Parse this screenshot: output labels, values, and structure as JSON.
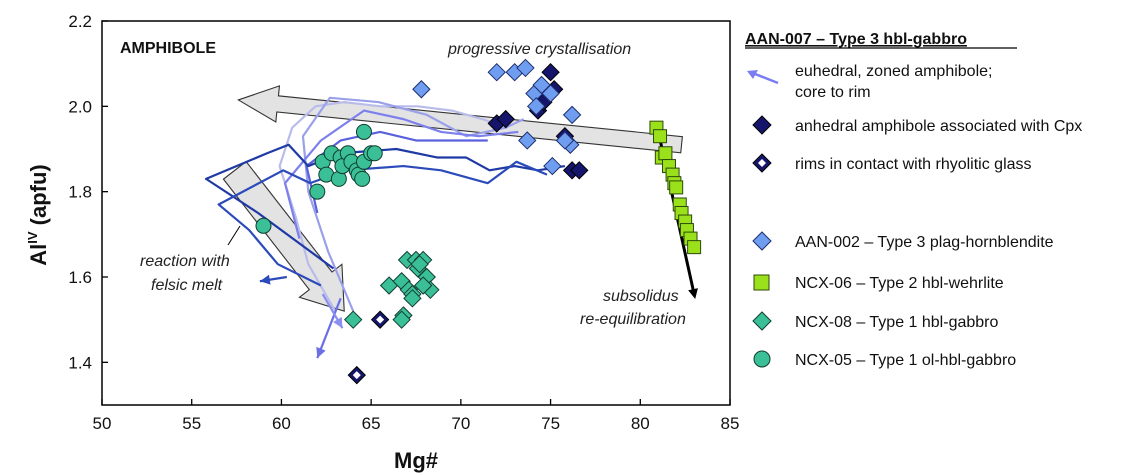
{
  "chart_data": {
    "type": "scatter",
    "xlabel": "Mg#",
    "ylabel_main": "Al",
    "ylabel_sup": "IV",
    "ylabel_rest": " (apfu)",
    "xlim": [
      50,
      85
    ],
    "ylim": [
      1.3,
      2.2
    ],
    "x_ticks": [
      "50",
      "55",
      "60",
      "65",
      "70",
      "75",
      "80",
      "85"
    ],
    "y_ticks": [
      "1.4",
      "1.6",
      "1.8",
      "2.0",
      "2.2"
    ],
    "panel_label": "AMPHIBOLE",
    "annotations": {
      "progressive": "progressive crystallisation",
      "reaction_line1": "reaction with",
      "reaction_line2": "felsic melt",
      "subsolidus_line1": "subsolidus",
      "subsolidus_line2": "re-equilibration"
    },
    "legend_title": "AAN-007 – Type 3 hbl-gabbro",
    "legend": [
      {
        "label_line1": "euhedral, zoned amphibole;",
        "label_line2": "core to rim",
        "symbol": "arrow",
        "color": "#7b7cf0"
      },
      {
        "label": "anhedral amphibole associated with Cpx",
        "symbol": "diamond",
        "color": "#15166b"
      },
      {
        "label": "rims in contact with rhyolitic glass",
        "symbol": "diamond-open",
        "color": "#15166b"
      },
      {
        "label": "AAN-002 – Type 3 plag-hornblendite",
        "symbol": "diamond",
        "color": "#6f9ef0"
      },
      {
        "label": "NCX-06 – Type 2 hbl-wehrlite",
        "symbol": "square",
        "color": "#9be11b"
      },
      {
        "label": "NCX-08 – Type 1 hbl-gabbro",
        "symbol": "diamond",
        "color": "#3bbf97"
      },
      {
        "label": "NCX-05 – Type 1 ol-hbl-gabbro",
        "symbol": "circle",
        "color": "#3bbf97"
      }
    ],
    "series": [
      {
        "key": "anhedral",
        "marker": "diamond",
        "color": "#15166b",
        "x": [
          72.0,
          72.5,
          74.3,
          74.6,
          75.0,
          75.2,
          75.8,
          76.2,
          76.6
        ],
        "y": [
          1.96,
          1.97,
          1.99,
          2.01,
          2.08,
          2.04,
          1.93,
          1.85,
          1.85
        ]
      },
      {
        "key": "rims",
        "marker": "diamond-open",
        "color": "#15166b",
        "x": [
          64.2,
          65.5
        ],
        "y": [
          1.37,
          1.5
        ]
      },
      {
        "key": "AAN-002",
        "marker": "diamond",
        "color": "#6f9ef0",
        "x": [
          67.8,
          72.0,
          73.0,
          73.6,
          74.1,
          74.5,
          74.2,
          73.7,
          75.1,
          76.1,
          76.2,
          75.0,
          75.8
        ],
        "y": [
          2.04,
          2.08,
          2.08,
          2.09,
          2.03,
          2.05,
          2.0,
          1.92,
          1.86,
          1.91,
          1.98,
          2.03,
          1.92
        ]
      },
      {
        "key": "NCX-06",
        "marker": "square",
        "color": "#9be11b",
        "x": [
          80.9,
          81.1,
          81.2,
          81.4,
          81.6,
          81.8,
          81.9,
          82.0,
          82.2,
          82.3,
          82.5,
          82.6,
          82.8,
          83.0
        ],
        "y": [
          1.95,
          1.93,
          1.88,
          1.89,
          1.86,
          1.84,
          1.82,
          1.81,
          1.77,
          1.75,
          1.73,
          1.71,
          1.69,
          1.67
        ]
      },
      {
        "key": "NCX-08",
        "marker": "diamond",
        "color": "#3bbf97",
        "x": [
          64.0,
          66.0,
          66.7,
          67.0,
          67.1,
          67.3,
          67.5,
          67.6,
          67.9,
          67.7,
          68.1,
          68.3,
          67.9,
          67.3,
          66.8,
          66.7
        ],
        "y": [
          1.5,
          1.58,
          1.59,
          1.64,
          1.57,
          1.56,
          1.64,
          1.62,
          1.64,
          1.63,
          1.6,
          1.57,
          1.58,
          1.55,
          1.51,
          1.5
        ]
      },
      {
        "key": "NCX-05",
        "marker": "circle",
        "color": "#3bbf97",
        "x": [
          59.0,
          62.0,
          62.3,
          62.5,
          62.8,
          63.2,
          63.3,
          63.4,
          63.7,
          63.9,
          64.2,
          64.3,
          64.5,
          64.6,
          65.0,
          65.2,
          64.6
        ],
        "y": [
          1.72,
          1.8,
          1.87,
          1.84,
          1.89,
          1.83,
          1.88,
          1.86,
          1.89,
          1.87,
          1.85,
          1.84,
          1.83,
          1.87,
          1.89,
          1.89,
          1.94
        ]
      }
    ],
    "paths": [
      {
        "color": "#b9bcea",
        "points": [
          [
            63.0,
            1.52
          ],
          [
            61.5,
            1.63
          ],
          [
            60.8,
            1.74
          ],
          [
            59.9,
            1.86
          ],
          [
            60.6,
            1.95
          ],
          [
            61.9,
            2.0
          ],
          [
            63.5,
            2.01
          ],
          [
            65.5,
            2.0
          ],
          [
            67.6,
            2.0
          ],
          [
            69.5,
            1.99
          ],
          [
            71.2,
            1.97
          ],
          [
            72.6,
            1.95
          ]
        ]
      },
      {
        "color": "#9aa0ea",
        "points": [
          [
            64.0,
            1.52
          ],
          [
            62.6,
            1.66
          ],
          [
            61.5,
            1.8
          ],
          [
            61.2,
            1.93
          ],
          [
            62.7,
            2.02
          ],
          [
            65.4,
            2.01
          ],
          [
            68.1,
            1.98
          ],
          [
            70.3,
            1.93
          ],
          [
            72.5,
            1.95
          ],
          [
            73.5,
            1.97
          ]
        ]
      },
      {
        "color": "#7d80eb",
        "points": [
          [
            61.0,
            1.69
          ],
          [
            60.2,
            1.82
          ],
          [
            62.2,
            1.92
          ],
          [
            64.6,
            1.99
          ],
          [
            66.8,
            1.97
          ],
          [
            68.9,
            1.94
          ],
          [
            71.0,
            1.93
          ],
          [
            73.2,
            1.94
          ]
        ]
      },
      {
        "color": "#5a61dd",
        "points": [
          [
            62.0,
            1.75
          ],
          [
            61.4,
            1.86
          ],
          [
            63.3,
            1.92
          ],
          [
            65.5,
            1.94
          ],
          [
            67.5,
            1.92
          ],
          [
            69.6,
            1.92
          ],
          [
            71.5,
            1.92
          ]
        ]
      },
      {
        "color": "#1f3aa5",
        "points": [
          [
            62.9,
            1.62
          ],
          [
            58.7,
            1.75
          ],
          [
            55.8,
            1.83
          ],
          [
            59.2,
            1.89
          ],
          [
            60.4,
            1.91
          ],
          [
            61.5,
            1.86
          ],
          [
            63.3,
            1.89
          ],
          [
            66.4,
            1.9
          ],
          [
            68.7,
            1.88
          ],
          [
            70.3,
            1.88
          ],
          [
            71.6,
            1.85
          ],
          [
            73.0,
            1.86
          ],
          [
            74.3,
            1.85
          ],
          [
            75.8,
            1.86
          ]
        ]
      },
      {
        "color": "#2c4bbb",
        "points": [
          [
            62.2,
            1.58
          ],
          [
            59.8,
            1.63
          ],
          [
            58.2,
            1.71
          ],
          [
            56.5,
            1.77
          ],
          [
            60.1,
            1.85
          ],
          [
            61.6,
            1.82
          ],
          [
            63.6,
            1.85
          ],
          [
            66.8,
            1.86
          ],
          [
            68.9,
            1.85
          ],
          [
            71.5,
            1.82
          ],
          [
            73.1,
            1.87
          ],
          [
            74.8,
            1.84
          ]
        ]
      }
    ],
    "path_arrows": [
      {
        "color": "#6a6fe6",
        "from": [
          63.3,
          1.55
        ],
        "to": [
          62.0,
          1.41
        ]
      },
      {
        "color": "#2c4bbb",
        "from": [
          60.3,
          1.6
        ],
        "to": [
          58.8,
          1.59
        ]
      },
      {
        "color": "#8a8ff0",
        "from": [
          62.3,
          1.56
        ],
        "to": [
          63.4,
          1.48
        ]
      }
    ],
    "big_arrows": [
      {
        "name": "progressive-crystallisation",
        "from": [
          82.3,
          1.91
        ],
        "to": [
          57.6,
          2.015
        ],
        "width": 0.038,
        "head_length": 2.2,
        "head_width": 0.085
      },
      {
        "name": "reaction-with-felsic-melt",
        "from": [
          57.4,
          1.85
        ],
        "to": [
          63.5,
          1.52
        ],
        "width": 1.6,
        "head_length": 0.09,
        "head_width": 3.0
      }
    ],
    "black_arrow": {
      "from": [
        80.9,
        1.96
      ],
      "to": [
        83.0,
        1.56
      ]
    }
  }
}
